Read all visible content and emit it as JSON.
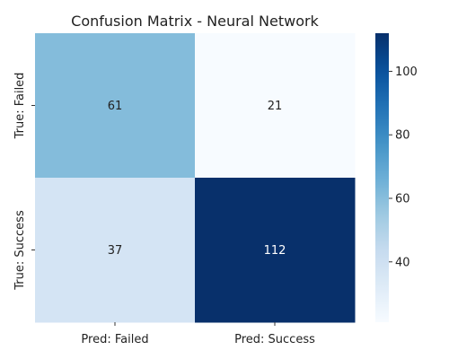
{
  "chart_data": {
    "type": "heatmap",
    "title": "Confusion Matrix - Neural Network",
    "xlabel": "",
    "ylabel": "",
    "x_categories": [
      "Pred: Failed",
      "Pred: Success"
    ],
    "y_categories": [
      "True: Failed",
      "True: Success"
    ],
    "values": [
      [
        61,
        21
      ],
      [
        37,
        112
      ]
    ],
    "colormap": "Blues",
    "color_range": [
      21,
      112
    ],
    "colorbar_ticks": [
      40,
      60,
      80,
      100
    ],
    "grid": false,
    "legend": "colorbar-right"
  }
}
